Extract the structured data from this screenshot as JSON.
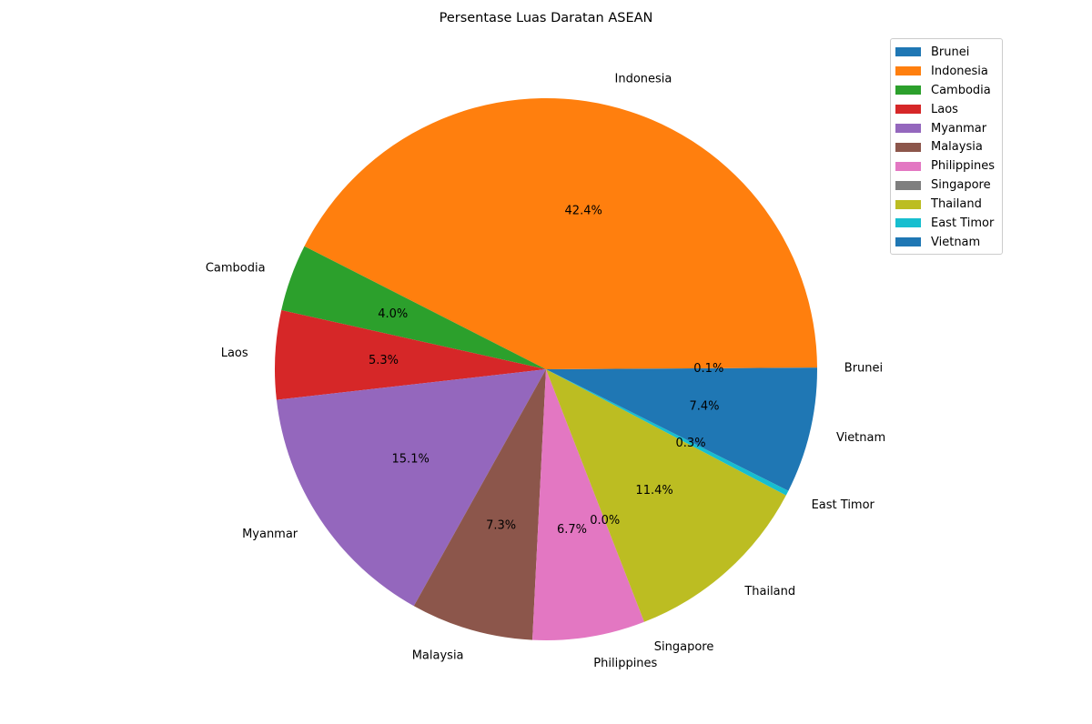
{
  "chart_data": {
    "type": "pie",
    "title": "Persentase Luas Daratan ASEAN",
    "categories": [
      "Brunei",
      "Indonesia",
      "Cambodia",
      "Laos",
      "Myanmar",
      "Malaysia",
      "Philippines",
      "Singapore",
      "Thailand",
      "East Timor",
      "Vietnam"
    ],
    "values": [
      0.1,
      42.4,
      4.0,
      5.3,
      15.1,
      7.3,
      6.7,
      0.0,
      11.4,
      0.3,
      7.4
    ],
    "percent_labels": [
      "0.1%",
      "42.4%",
      "4.0%",
      "5.3%",
      "15.1%",
      "7.3%",
      "6.7%",
      "0.0%",
      "11.4%",
      "0.3%",
      "7.4%"
    ],
    "colors": [
      "#1f77b4",
      "#ff7f0e",
      "#2ca02c",
      "#d62728",
      "#9467bd",
      "#8c564b",
      "#e377c2",
      "#7f7f7f",
      "#bcbd22",
      "#17becf",
      "#1f77b4"
    ],
    "start_angle_deg": 0,
    "direction": "counterclockwise",
    "legend": {
      "placement": "top-right",
      "entries": [
        "Brunei",
        "Indonesia",
        "Cambodia",
        "Laos",
        "Myanmar",
        "Malaysia",
        "Philippines",
        "Singapore",
        "Thailand",
        "East Timor",
        "Vietnam"
      ]
    }
  }
}
